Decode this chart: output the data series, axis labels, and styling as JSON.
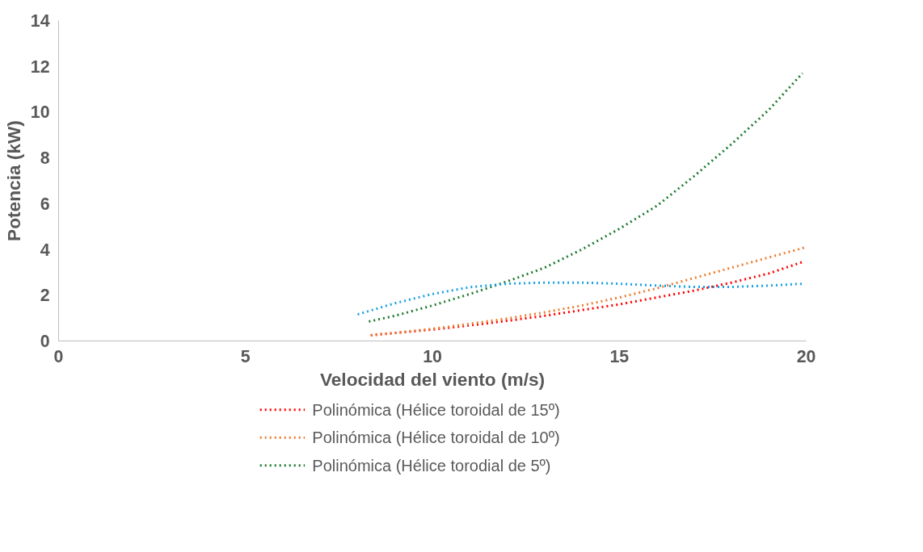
{
  "chart_data": {
    "type": "line",
    "xlabel": "Velocidad del viento (m/s)",
    "ylabel": "Potencia (kW)",
    "xlim": [
      0,
      20
    ],
    "xticks": [
      0,
      5,
      10,
      15,
      20
    ],
    "ylim": [
      0,
      14
    ],
    "yticks": [
      0,
      2,
      4,
      6,
      8,
      10,
      12,
      14
    ],
    "grid": false,
    "legend": "bottom",
    "marker": "none",
    "line_style": "dotted",
    "series": [
      {
        "name": "Polinómica (Hélice toroidal de 15º)",
        "color": "#ff0000",
        "x": [
          8.35,
          9,
          10,
          11,
          12,
          13,
          14,
          15,
          16,
          17,
          18,
          19,
          19.9
        ],
        "values": [
          0.25,
          0.35,
          0.5,
          0.68,
          0.88,
          1.1,
          1.35,
          1.6,
          1.9,
          2.2,
          2.55,
          2.95,
          3.45
        ]
      },
      {
        "name": "Polinómica (Hélice toroidal de 10º)",
        "color": "#ed7d31",
        "x": [
          8.35,
          9,
          10,
          11,
          12,
          13,
          14,
          15,
          16,
          17,
          18,
          19,
          20
        ],
        "values": [
          0.25,
          0.35,
          0.53,
          0.75,
          0.98,
          1.25,
          1.55,
          1.9,
          2.3,
          2.75,
          3.2,
          3.65,
          4.1
        ]
      },
      {
        "name": "Polinómica (Hélice torodial de 5º)",
        "color": "#1e7a2e",
        "x": [
          8.3,
          9,
          10,
          11,
          12,
          13,
          14,
          15,
          16,
          17,
          18,
          19,
          19.9
        ],
        "values": [
          0.85,
          1.1,
          1.55,
          2.05,
          2.6,
          3.2,
          4.0,
          4.9,
          5.9,
          7.2,
          8.6,
          10.1,
          11.7
        ]
      },
      {
        "color": "#1ba1e2",
        "x": [
          8,
          9,
          10,
          11,
          12,
          13,
          14,
          15,
          16,
          17,
          18,
          19,
          19.9
        ],
        "values": [
          1.16,
          1.65,
          2.05,
          2.35,
          2.5,
          2.55,
          2.55,
          2.5,
          2.42,
          2.36,
          2.36,
          2.42,
          2.5
        ]
      }
    ]
  }
}
